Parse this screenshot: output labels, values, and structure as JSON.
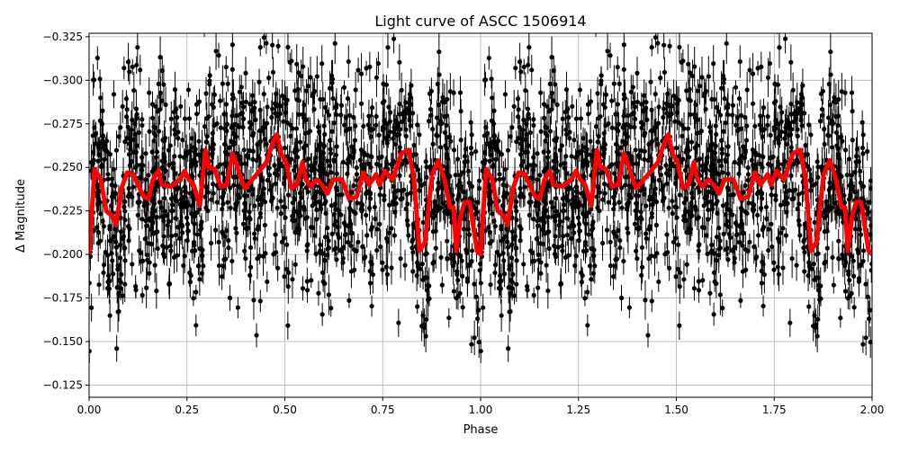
{
  "chart_data": {
    "type": "scatter",
    "title": "Light curve of ASCC 1506914",
    "xlabel": "Phase",
    "ylabel": "Δ Magnitude",
    "xlim": [
      0,
      2
    ],
    "ylim": [
      -0.118,
      -0.327
    ],
    "y_inverted": true,
    "grid": true,
    "xticks": [
      "0.00",
      "0.25",
      "0.50",
      "0.75",
      "1.00",
      "1.25",
      "1.50",
      "1.75",
      "2.00"
    ],
    "xtick_values": [
      0,
      0.25,
      0.5,
      0.75,
      1,
      1.25,
      1.5,
      1.75,
      2
    ],
    "yticks": [
      "−0.325",
      "−0.300",
      "−0.275",
      "−0.250",
      "−0.225",
      "−0.200",
      "−0.175",
      "−0.150",
      "−0.125"
    ],
    "ytick_values": [
      -0.325,
      -0.3,
      -0.275,
      -0.25,
      -0.225,
      -0.2,
      -0.175,
      -0.15,
      -0.125
    ],
    "series": [
      {
        "kind": "errorbar-scatter",
        "color": "#000000",
        "description_visible": "black points with vertical error bars spread around the binned curve"
      },
      {
        "kind": "line",
        "color": "#ff0000",
        "points": [
          [
            0,
            -0.2
          ],
          [
            0.014,
            -0.249
          ],
          [
            0.03,
            -0.243
          ],
          [
            0.044,
            -0.225
          ],
          [
            0.06,
            -0.222
          ],
          [
            0.069,
            -0.217
          ],
          [
            0.083,
            -0.238
          ],
          [
            0.097,
            -0.247
          ],
          [
            0.113,
            -0.246
          ],
          [
            0.129,
            -0.238
          ],
          [
            0.14,
            -0.233
          ],
          [
            0.152,
            -0.232
          ],
          [
            0.163,
            -0.243
          ],
          [
            0.177,
            -0.248
          ],
          [
            0.186,
            -0.24
          ],
          [
            0.209,
            -0.239
          ],
          [
            0.232,
            -0.243
          ],
          [
            0.244,
            -0.248
          ],
          [
            0.255,
            -0.243
          ],
          [
            0.267,
            -0.24
          ],
          [
            0.283,
            -0.228
          ],
          [
            0.297,
            -0.26
          ],
          [
            0.306,
            -0.25
          ],
          [
            0.32,
            -0.249
          ],
          [
            0.336,
            -0.239
          ],
          [
            0.352,
            -0.24
          ],
          [
            0.366,
            -0.258
          ],
          [
            0.375,
            -0.253
          ],
          [
            0.389,
            -0.243
          ],
          [
            0.398,
            -0.238
          ],
          [
            0.421,
            -0.244
          ],
          [
            0.439,
            -0.249
          ],
          [
            0.453,
            -0.253
          ],
          [
            0.469,
            -0.264
          ],
          [
            0.48,
            -0.269
          ],
          [
            0.49,
            -0.258
          ],
          [
            0.503,
            -0.253
          ],
          [
            0.517,
            -0.238
          ],
          [
            0.531,
            -0.24
          ],
          [
            0.545,
            -0.253
          ],
          [
            0.554,
            -0.243
          ],
          [
            0.566,
            -0.239
          ],
          [
            0.582,
            -0.243
          ],
          [
            0.595,
            -0.24
          ],
          [
            0.609,
            -0.235
          ],
          [
            0.623,
            -0.243
          ],
          [
            0.646,
            -0.243
          ],
          [
            0.664,
            -0.232
          ],
          [
            0.683,
            -0.233
          ],
          [
            0.701,
            -0.247
          ],
          [
            0.715,
            -0.24
          ],
          [
            0.733,
            -0.246
          ],
          [
            0.742,
            -0.24
          ],
          [
            0.756,
            -0.248
          ],
          [
            0.775,
            -0.243
          ],
          [
            0.798,
            -0.258
          ],
          [
            0.816,
            -0.26
          ],
          [
            0.83,
            -0.243
          ],
          [
            0.844,
            -0.202
          ],
          [
            0.858,
            -0.207
          ],
          [
            0.876,
            -0.246
          ],
          [
            0.892,
            -0.254
          ],
          [
            0.908,
            -0.243
          ],
          [
            0.922,
            -0.227
          ],
          [
            0.931,
            -0.227
          ],
          [
            0.938,
            -0.202
          ],
          [
            0.949,
            -0.222
          ],
          [
            0.959,
            -0.23
          ],
          [
            0.972,
            -0.23
          ],
          [
            0.991,
            -0.202
          ],
          [
            1.0,
            -0.2
          ],
          [
            1.014,
            -0.249
          ],
          [
            1.03,
            -0.243
          ],
          [
            1.044,
            -0.225
          ],
          [
            1.06,
            -0.222
          ],
          [
            1.069,
            -0.217
          ],
          [
            1.083,
            -0.238
          ],
          [
            1.097,
            -0.247
          ],
          [
            1.113,
            -0.246
          ],
          [
            1.129,
            -0.238
          ],
          [
            1.14,
            -0.233
          ],
          [
            1.152,
            -0.232
          ],
          [
            1.163,
            -0.243
          ],
          [
            1.177,
            -0.248
          ],
          [
            1.186,
            -0.24
          ],
          [
            1.209,
            -0.239
          ],
          [
            1.232,
            -0.243
          ],
          [
            1.244,
            -0.248
          ],
          [
            1.255,
            -0.243
          ],
          [
            1.267,
            -0.24
          ],
          [
            1.283,
            -0.228
          ],
          [
            1.297,
            -0.26
          ],
          [
            1.306,
            -0.25
          ],
          [
            1.32,
            -0.249
          ],
          [
            1.336,
            -0.239
          ],
          [
            1.352,
            -0.24
          ],
          [
            1.366,
            -0.258
          ],
          [
            1.375,
            -0.253
          ],
          [
            1.389,
            -0.243
          ],
          [
            1.398,
            -0.238
          ],
          [
            1.421,
            -0.244
          ],
          [
            1.439,
            -0.249
          ],
          [
            1.453,
            -0.253
          ],
          [
            1.469,
            -0.264
          ],
          [
            1.48,
            -0.269
          ],
          [
            1.49,
            -0.258
          ],
          [
            1.503,
            -0.253
          ],
          [
            1.517,
            -0.238
          ],
          [
            1.531,
            -0.24
          ],
          [
            1.545,
            -0.253
          ],
          [
            1.554,
            -0.243
          ],
          [
            1.566,
            -0.239
          ],
          [
            1.582,
            -0.243
          ],
          [
            1.595,
            -0.24
          ],
          [
            1.609,
            -0.235
          ],
          [
            1.623,
            -0.243
          ],
          [
            1.646,
            -0.243
          ],
          [
            1.664,
            -0.232
          ],
          [
            1.683,
            -0.233
          ],
          [
            1.701,
            -0.247
          ],
          [
            1.715,
            -0.24
          ],
          [
            1.733,
            -0.246
          ],
          [
            1.742,
            -0.24
          ],
          [
            1.756,
            -0.248
          ],
          [
            1.775,
            -0.243
          ],
          [
            1.798,
            -0.258
          ],
          [
            1.816,
            -0.26
          ],
          [
            1.83,
            -0.243
          ],
          [
            1.844,
            -0.202
          ],
          [
            1.858,
            -0.207
          ],
          [
            1.876,
            -0.246
          ],
          [
            1.892,
            -0.254
          ],
          [
            1.908,
            -0.243
          ],
          [
            1.922,
            -0.227
          ],
          [
            1.931,
            -0.227
          ],
          [
            1.938,
            -0.202
          ],
          [
            1.949,
            -0.222
          ],
          [
            1.959,
            -0.23
          ],
          [
            1.972,
            -0.23
          ],
          [
            1.991,
            -0.202
          ],
          [
            2.0,
            -0.2
          ]
        ]
      }
    ]
  }
}
